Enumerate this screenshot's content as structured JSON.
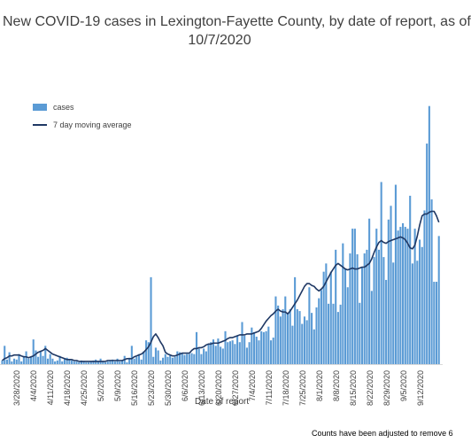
{
  "chart_data": {
    "type": "bar",
    "title": "New COVID-19 cases in Lexington-Fayette County, by date of report, as of 10/7/2020",
    "title_line1": "New COVID-19 cases in Lexington-Fayette County, by date of report, as of",
    "title_line2": "10/7/2020",
    "xlabel": "Date of report",
    "ylabel": "",
    "legend": {
      "position": "top-left",
      "entries": [
        "cases",
        "7 day moving average"
      ]
    },
    "grid": false,
    "x_tick_labels": [
      "3/28/2020",
      "4/4/2020",
      "4/11/2020",
      "4/18/2020",
      "4/25/2020",
      "5/2/2020",
      "5/9/2020",
      "5/16/2020",
      "5/23/2020",
      "5/30/2020",
      "6/6/2020",
      "6/13/2020",
      "6/20/2020",
      "6/27/2020",
      "7/4/2020",
      "7/11/2020",
      "7/18/2020",
      "7/25/2020",
      "8/1/2020",
      "8/8/2020",
      "8/15/2020",
      "8/22/2020",
      "8/29/2020",
      "9/5/2020",
      "9/12/2020"
    ],
    "series": [
      {
        "name": "cases",
        "type": "bar",
        "color": "#5b9bd5",
        "values": [
          4,
          20,
          5,
          13,
          3,
          6,
          5,
          11,
          3,
          9,
          14,
          6,
          8,
          27,
          15,
          8,
          14,
          9,
          20,
          6,
          11,
          6,
          3,
          4,
          9,
          3,
          6,
          7,
          5,
          4,
          3,
          3,
          2,
          4,
          3,
          2,
          2,
          3,
          4,
          5,
          3,
          6,
          3,
          2,
          3,
          4,
          5,
          3,
          6,
          3,
          4,
          9,
          2,
          7,
          20,
          6,
          8,
          11,
          5,
          14,
          26,
          24,
          95,
          8,
          18,
          15,
          4,
          7,
          11,
          8,
          10,
          7,
          8,
          14,
          13,
          12,
          10,
          11,
          11,
          12,
          11,
          35,
          17,
          11,
          17,
          14,
          22,
          24,
          27,
          20,
          28,
          19,
          17,
          36,
          24,
          25,
          26,
          22,
          31,
          24,
          46,
          31,
          18,
          24,
          40,
          35,
          30,
          26,
          36,
          35,
          36,
          41,
          26,
          29,
          74,
          64,
          52,
          60,
          74,
          55,
          60,
          42,
          95,
          60,
          58,
          44,
          52,
          48,
          84,
          56,
          38,
          62,
          72,
          81,
          101,
          110,
          66,
          101,
          66,
          125,
          57,
          65,
          132,
          104,
          84,
          121,
          148,
          148,
          120,
          67,
          106,
          121,
          125,
          159,
          80,
          117,
          148,
          125,
          199,
          117,
          92,
          158,
          173,
          111,
          196,
          146,
          150,
          154,
          150,
          148,
          184,
          110,
          148,
          113,
          136,
          128,
          168,
          241,
          282,
          180,
          90,
          90,
          140
        ]
      },
      {
        "name": "7 day moving average",
        "type": "line",
        "color": "#1f3864",
        "values": [
          4,
          6,
          7,
          9,
          9,
          10,
          10,
          10,
          9,
          8,
          8,
          7,
          8,
          9,
          11,
          13,
          14,
          15,
          17,
          15,
          13,
          11,
          10,
          9,
          8,
          7,
          6,
          5,
          5,
          5,
          4,
          4,
          3,
          3,
          3,
          3,
          3,
          3,
          3,
          3,
          3,
          3,
          3,
          3,
          4,
          4,
          4,
          4,
          4,
          4,
          4,
          5,
          6,
          6,
          6,
          8,
          9,
          10,
          11,
          13,
          16,
          19,
          24,
          30,
          33,
          29,
          24,
          20,
          13,
          11,
          10,
          9,
          9,
          10,
          11,
          12,
          12,
          12,
          12,
          15,
          17,
          17,
          18,
          18,
          19,
          21,
          22,
          22,
          23,
          23,
          23,
          24,
          25,
          26,
          28,
          29,
          29,
          30,
          31,
          32,
          32,
          32,
          33,
          33,
          33,
          34,
          35,
          36,
          39,
          43,
          47,
          50,
          53,
          55,
          58,
          60,
          58,
          57,
          57,
          55,
          58,
          62,
          66,
          70,
          75,
          80,
          85,
          88,
          88,
          86,
          85,
          82,
          80,
          82,
          85,
          90,
          95,
          100,
          104,
          108,
          110,
          108,
          106,
          104,
          103,
          104,
          105,
          104,
          104,
          105,
          106,
          106,
          108,
          110,
          115,
          122,
          128,
          133,
          135,
          133,
          132,
          134,
          135,
          136,
          137,
          138,
          139,
          138,
          136,
          132,
          127,
          126,
          130,
          140,
          152,
          162,
          164,
          164,
          166,
          167,
          167,
          162,
          155
        ]
      }
    ],
    "footnote": "Counts have been adjusted to remove 6"
  }
}
